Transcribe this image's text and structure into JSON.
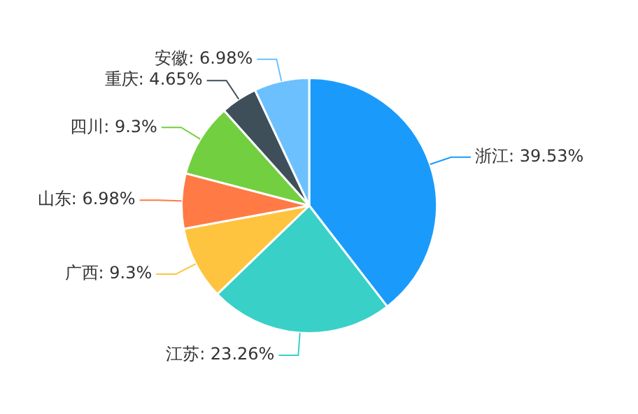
{
  "chart_data": {
    "type": "pie",
    "categories": [
      "浙江",
      "江苏",
      "广西",
      "山东",
      "四川",
      "重庆",
      "安徽"
    ],
    "values": [
      39.53,
      23.26,
      9.3,
      6.98,
      9.3,
      4.65,
      6.98
    ],
    "value_labels": [
      "39.53%",
      "23.26%",
      "9.3%",
      "6.98%",
      "9.3%",
      "4.65%",
      "6.98%"
    ],
    "colors": [
      "#1a9bfc",
      "#39d0c8",
      "#fec43f",
      "#ff7a45",
      "#72cf40",
      "#3e4f5a",
      "#6cc0fe"
    ],
    "legend": false
  }
}
